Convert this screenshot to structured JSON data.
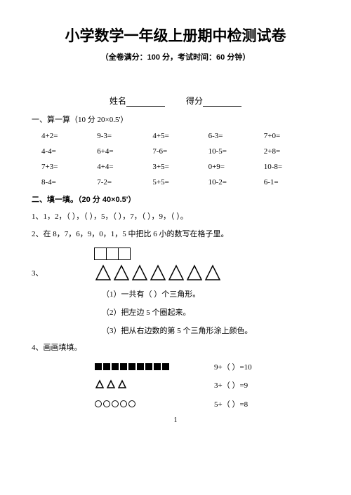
{
  "title": "小学数学一年级上册期中检测试卷",
  "subtitle": "（全卷满分：100 分，考试时间：60 分钟）",
  "name_label": "姓名",
  "score_label": "得分",
  "section1": {
    "heading": "一、算一算（10 分  20×0.5'）",
    "rows": [
      [
        "4+2=",
        "9-3=",
        "4+5=",
        "6-3=",
        "7+0="
      ],
      [
        "4-4=",
        "6+4=",
        "7-6=",
        "10-5=",
        "2+8="
      ],
      [
        "7+3=",
        "4+4=",
        "3+5=",
        "0+9=",
        "10-8="
      ],
      [
        "8-4=",
        "7-2=",
        "5+5=",
        "10-2=",
        "6-1="
      ]
    ]
  },
  "section2": {
    "heading": "二、填一填。（20 分  40×0.5'）",
    "q1": "1、1，2，（    ），（    ），5，（    ），7，（    ），9，（    ）。",
    "q2": "2、在 8，7，6，9，0，1，5 中把比 6 小的数写在格子里。",
    "q3_label": "3、",
    "q3_sub1": "（1）一共有（    ）个三角形。",
    "q3_sub2": "（2）把左边 5 个圈起来。",
    "q3_sub3": "（3）把从右边数的第 5 个三角形涂上颜色。",
    "q4_label": "4、画画填填。",
    "eq_rows": [
      {
        "squares": 9,
        "triangles": 0,
        "circles": 0,
        "eq": "9+（    ）=10"
      },
      {
        "squares": 0,
        "triangles": 3,
        "circles": 0,
        "eq": "3+（    ）=9"
      },
      {
        "squares": 0,
        "triangles": 0,
        "circles": 5,
        "eq": "5+（    ）=8"
      }
    ]
  },
  "triangle_count": 7,
  "box_count": 3,
  "page_number": "1"
}
